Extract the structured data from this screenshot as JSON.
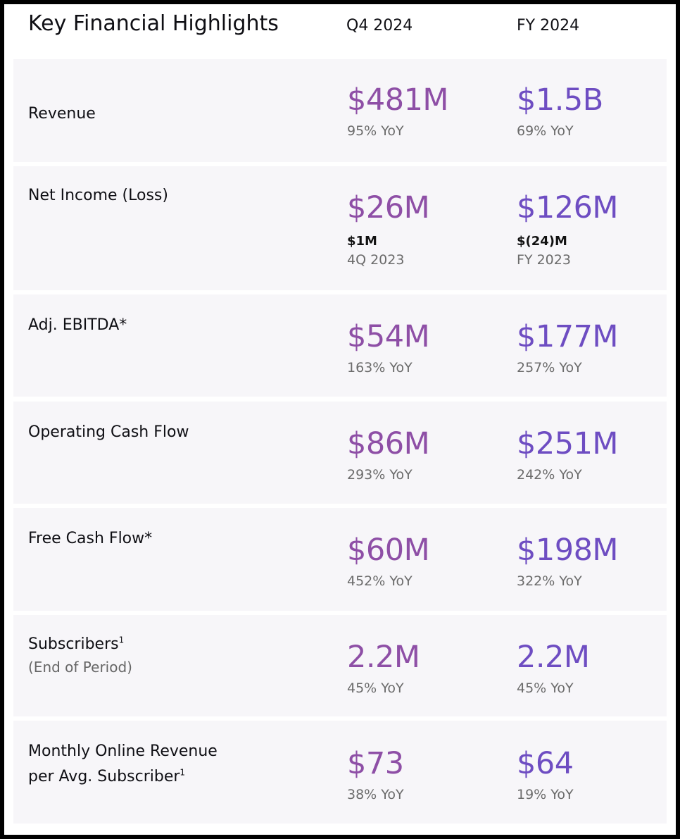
{
  "header": {
    "title": "Key Financial Highlights",
    "col_q4": "Q4 2024",
    "col_fy": "FY 2024"
  },
  "rows": [
    {
      "label": "Revenue",
      "q4": {
        "value": "$481M",
        "change": "95% YoY"
      },
      "fy": {
        "value": "$1.5B",
        "change": "69% YoY"
      }
    },
    {
      "label": "Net Income (Loss)",
      "q4": {
        "value": "$26M",
        "prior_value": "$1M",
        "prior_period": "4Q 2023"
      },
      "fy": {
        "value": "$126M",
        "prior_value": "$(24)M",
        "prior_period": "FY 2023"
      }
    },
    {
      "label": "Adj. EBITDA*",
      "q4": {
        "value": "$54M",
        "change": "163% YoY"
      },
      "fy": {
        "value": "$177M",
        "change": "257% YoY"
      }
    },
    {
      "label": "Operating Cash Flow",
      "q4": {
        "value": "$86M",
        "change": "293% YoY"
      },
      "fy": {
        "value": "$251M",
        "change": "242% YoY"
      }
    },
    {
      "label": "Free Cash Flow*",
      "q4": {
        "value": "$60M",
        "change": "452% YoY"
      },
      "fy": {
        "value": "$198M",
        "change": "322% YoY"
      }
    },
    {
      "label": "Subscribers",
      "footnote": "1",
      "sublabel": "(End of Period)",
      "q4": {
        "value": "2.2M",
        "change": "45% YoY"
      },
      "fy": {
        "value": "2.2M",
        "change": "45% YoY"
      }
    },
    {
      "label_line1": "Monthly Online Revenue",
      "label_line2": "per Avg. Subscriber",
      "footnote": "1",
      "q4": {
        "value": "$73",
        "change": "38% YoY"
      },
      "fy": {
        "value": "$64",
        "change": "19% YoY"
      }
    }
  ],
  "colors": {
    "q4_value": "#8e4fa6",
    "fy_value": "#6e4dc2",
    "row_background": "#f7f6f9",
    "frame": "#000000"
  }
}
